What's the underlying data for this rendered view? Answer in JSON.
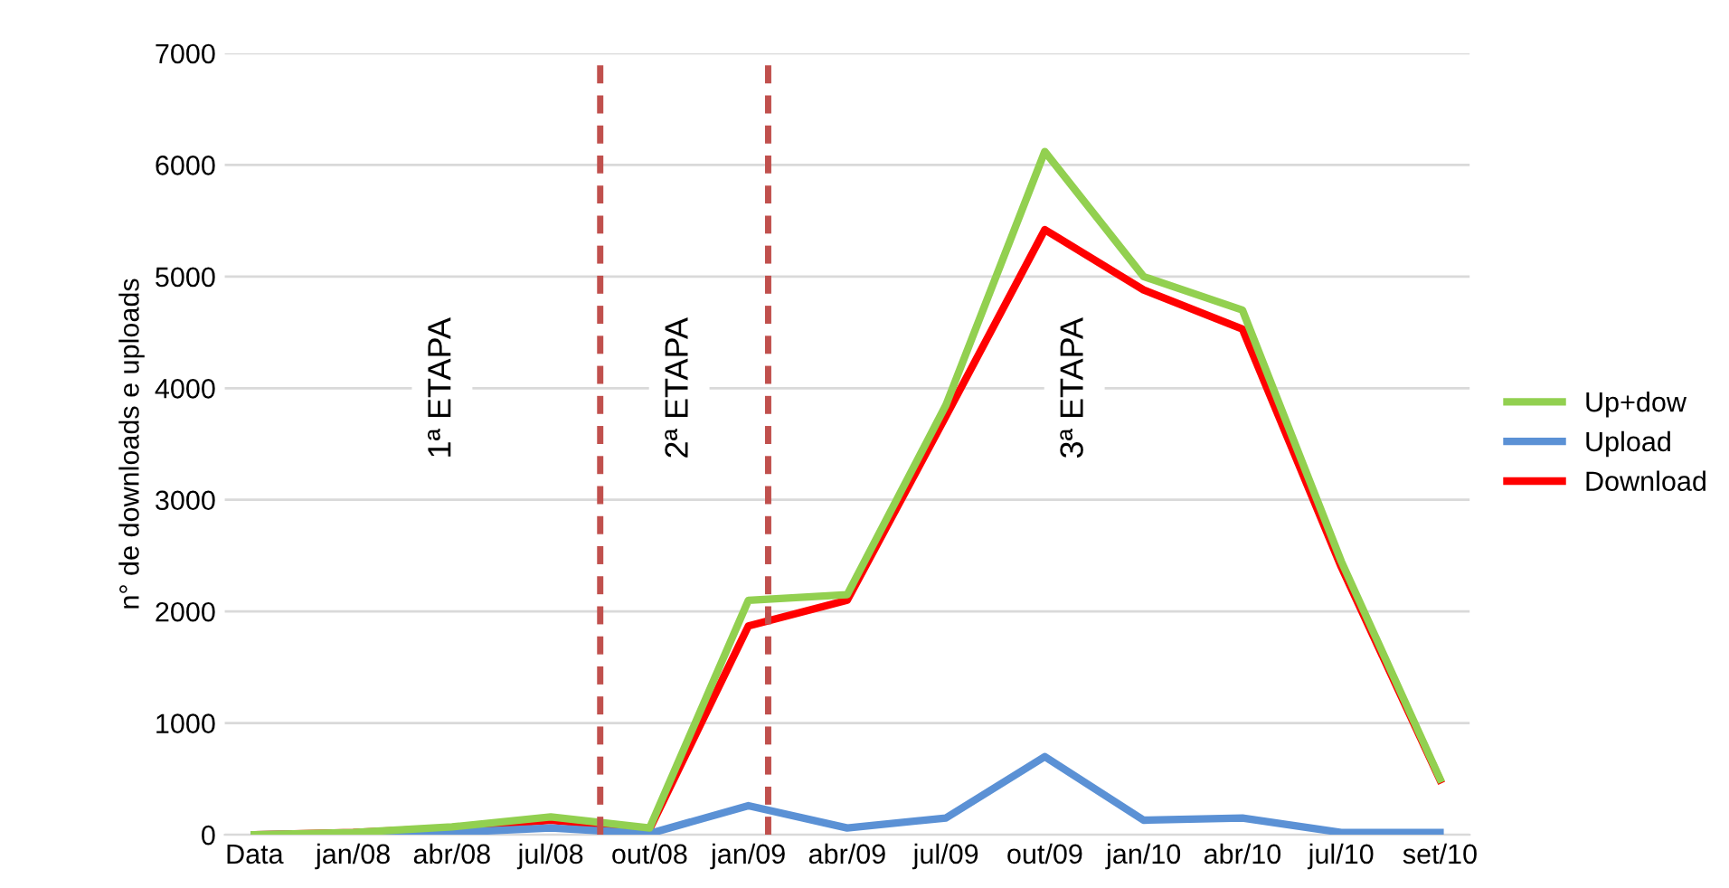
{
  "chart_data": {
    "type": "line",
    "ylabel": "n° de downloads e uploads",
    "categories": [
      "Data",
      "jan/08",
      "abr/08",
      "jul/08",
      "out/08",
      "jan/09",
      "abr/09",
      "jul/09",
      "out/09",
      "jan/10",
      "abr/10",
      "jul/10",
      "set/10"
    ],
    "series": [
      {
        "name": "Up+dow",
        "color": "#92d050",
        "values": [
          0,
          20,
          70,
          160,
          60,
          2100,
          2150,
          3850,
          6120,
          5000,
          4700,
          2450,
          500
        ]
      },
      {
        "name": "Upload",
        "color": "#5b91d5",
        "values": [
          0,
          10,
          20,
          60,
          10,
          260,
          60,
          150,
          700,
          130,
          150,
          20,
          20
        ]
      },
      {
        "name": "Download",
        "color": "#ff0000",
        "values": [
          0,
          20,
          60,
          130,
          50,
          1870,
          2100,
          3750,
          5420,
          4880,
          4530,
          2400,
          490
        ]
      }
    ],
    "ylim": [
      0,
      7000
    ],
    "yticks": [
      0,
      1000,
      2000,
      3000,
      4000,
      5000,
      6000,
      7000
    ],
    "grid": "y",
    "legend": "right",
    "marker": "none",
    "line_style": "solid",
    "annotations": [
      "1ª ETAPA",
      "2ª ETAPA",
      "3ª ETAPA"
    ]
  }
}
